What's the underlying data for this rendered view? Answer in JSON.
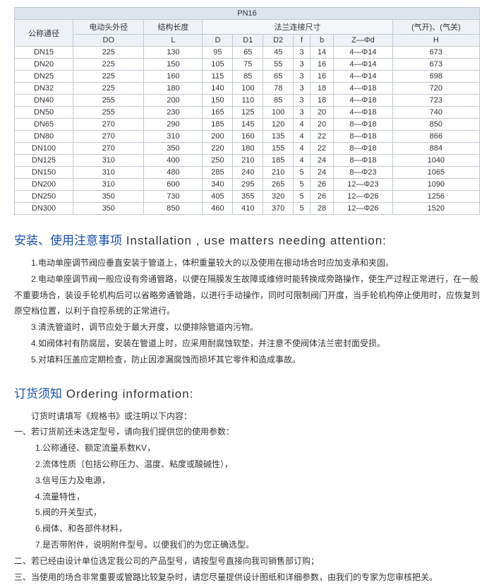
{
  "table": {
    "top_title": "PN16",
    "group_cols": [
      "公称通径",
      "电动头外径",
      "结构长度",
      "",
      "",
      "法兰连接尺寸",
      "",
      "",
      "",
      "(气开)、(气关)"
    ],
    "sub_cols": [
      "",
      "DO",
      "L",
      "D",
      "D1",
      "D2",
      "f",
      "b",
      "Z—Φd",
      "H"
    ],
    "rows": [
      [
        "DN15",
        "225",
        "130",
        "95",
        "65",
        "45",
        "3",
        "14",
        "4—Φ14",
        "673"
      ],
      [
        "DN20",
        "225",
        "150",
        "105",
        "75",
        "55",
        "3",
        "16",
        "4—Φ14",
        "673"
      ],
      [
        "DN25",
        "225",
        "160",
        "115",
        "85",
        "65",
        "3",
        "16",
        "4—Φ14",
        "698"
      ],
      [
        "DN32",
        "225",
        "180",
        "140",
        "100",
        "78",
        "3",
        "18",
        "4—Φ18",
        "720"
      ],
      [
        "DN40",
        "255",
        "200",
        "150",
        "110",
        "85",
        "3",
        "18",
        "4—Φ18",
        "723"
      ],
      [
        "DN50",
        "255",
        "230",
        "165",
        "125",
        "100",
        "3",
        "20",
        "4—Φ18",
        "740"
      ],
      [
        "DN65",
        "270",
        "290",
        "185",
        "145",
        "120",
        "4",
        "20",
        "8—Φ18",
        "850"
      ],
      [
        "DN80",
        "270",
        "310",
        "200",
        "160",
        "135",
        "4",
        "22",
        "8—Φ18",
        "866"
      ],
      [
        "DN100",
        "270",
        "350",
        "220",
        "180",
        "155",
        "4",
        "22",
        "8—Φ18",
        "884"
      ],
      [
        "DN125",
        "310",
        "400",
        "250",
        "210",
        "185",
        "4",
        "24",
        "8—Φ18",
        "1040"
      ],
      [
        "DN150",
        "310",
        "480",
        "285",
        "240",
        "210",
        "5",
        "24",
        "8—Φ23",
        "1065"
      ],
      [
        "DN200",
        "310",
        "600",
        "340",
        "295",
        "265",
        "5",
        "26",
        "12—Φ23",
        "1090"
      ],
      [
        "DN250",
        "350",
        "730",
        "405",
        "355",
        "320",
        "5",
        "26",
        "12—Φ26",
        "1256"
      ],
      [
        "DN300",
        "350",
        "850",
        "460",
        "410",
        "370",
        "5",
        "28",
        "12—Φ26",
        "1520"
      ]
    ]
  },
  "install": {
    "title_cn": "安装、使用注意事项",
    "title_en": " Installation , use matters needing attention:",
    "lines": [
      "1.电动单座调节阀应垂直安装于管道上，体积重量较大的以及使用在振动场合时应加支承和夹固。",
      "2.电动单座调节阀一般应设有旁通管路，以便在隔膜发生故障或维修时能转换成旁路操作，使生产过程正常进行，在一般不重要场合，装设手轮机构后可以省略旁通管路，以进行手动操作，同时可限制阀门开度，当手轮机构停止使用时，应恢复到原空档位置，以利于自控系统的正常进行。",
      "3.清洗管道时，调节应处于最大开度，以便排除管道内污物。",
      "4.如阀体衬有防腐层，安装在管道上时，应采用耐腐蚀软垫，并注意不使阀体法兰密封面受损。",
      "5.对填料压盖应定期检查，防止因渗漏腐蚀而损坏其它零件和造成事故。"
    ]
  },
  "ordering": {
    "title_cn": "订货须知",
    "title_en": " Ordering information:",
    "intro": "订货时请填写《规格书》或注明以下内容：",
    "items": [
      {
        "lvl": "lvl1",
        "t": "一、若订货前还未选定型号，请向我们提供您的使用参数："
      },
      {
        "lvl": "lvl2",
        "t": "1.公称通径、额定流量系数KV，"
      },
      {
        "lvl": "lvl2",
        "t": "2.流体性质（包括公称压力、温度、粘度或酸碱性），"
      },
      {
        "lvl": "lvl2",
        "t": "3.信号压力及电源，"
      },
      {
        "lvl": "lvl2",
        "t": "4.流量特性，"
      },
      {
        "lvl": "lvl2",
        "t": "5.阀的开关型式，"
      },
      {
        "lvl": "lvl2",
        "t": "6.阀体、和各部件材料，"
      },
      {
        "lvl": "lvl2",
        "t": "7.是否带附件，说明附件型号。以便我们的为您正确选型。"
      },
      {
        "lvl": "lvl1",
        "t": "二、若已经由设计单位选定我公司的产品型号，请按型号直接向我司销售部订购；"
      },
      {
        "lvl": "lvl1",
        "t": "三、当使用的场合非常重要或管路比较复杂时，请您尽量提供设计图纸和详细参数，由我们的专家为您审核把关。"
      }
    ]
  },
  "colors": {
    "hdr_title_bg": "#dce4ee",
    "hdr_sub_bg": "#eef2f7",
    "border": "#c0c8d4",
    "section_title": "#1a4fb3"
  }
}
